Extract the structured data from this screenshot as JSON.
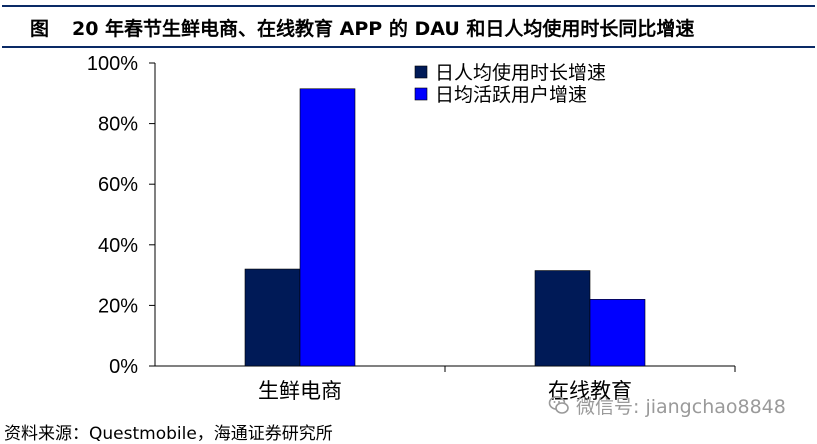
{
  "header": {
    "figure_prefix": "图",
    "title": "20 年春节生鲜电商、在线教育 APP 的 DAU 和日人均使用时长同比增速"
  },
  "chart_data": {
    "type": "bar",
    "title": "20 年春节生鲜电商、在线教育 APP 的 DAU 和日人均使用时长同比增速",
    "categories": [
      "生鲜电商",
      "在线教育"
    ],
    "series": [
      {
        "name": "日人均使用时长增速",
        "values": [
          32,
          31.5
        ],
        "color": "#001a57"
      },
      {
        "name": "日均活跃用户增速",
        "values": [
          91.5,
          22
        ],
        "color": "#0000ff"
      }
    ],
    "ylim": [
      0,
      100
    ],
    "yticks": [
      0,
      20,
      40,
      60,
      80,
      100
    ],
    "ytick_labels": [
      "0%",
      "20%",
      "40%",
      "60%",
      "80%",
      "100%"
    ],
    "xlabel": "",
    "ylabel": "",
    "grid": false,
    "legend": "top-right"
  },
  "footer": {
    "source": "资料来源：Questmobile，海通证券研究所"
  },
  "watermark": {
    "text": "微信号: jiangchao8848",
    "icon": "wechat-icon"
  }
}
